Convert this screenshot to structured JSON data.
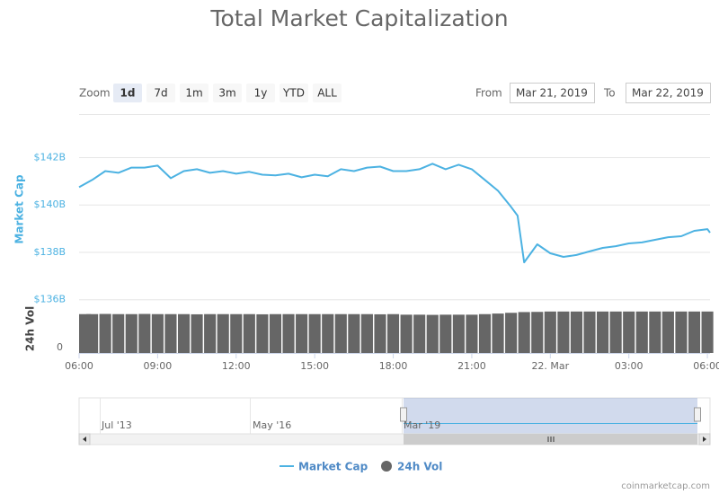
{
  "chart_data": {
    "type": "line",
    "title": "Total Market Capitalization",
    "range_selector": {
      "label": "Zoom",
      "buttons": [
        "1d",
        "7d",
        "1m",
        "3m",
        "1y",
        "YTD",
        "ALL"
      ],
      "selected": 0,
      "from_label": "From",
      "from": "Mar 21, 2019",
      "to_label": "To",
      "to": "Mar 22, 2019"
    },
    "y_axis_title": "Market Cap",
    "y2_axis_title": "24h Vol",
    "xlim": [
      6,
      30.1
    ],
    "xticks": [
      {
        "value": 6,
        "label": "06:00"
      },
      {
        "value": 9,
        "label": "09:00"
      },
      {
        "value": 12,
        "label": "12:00"
      },
      {
        "value": 15,
        "label": "15:00"
      },
      {
        "value": 18,
        "label": "18:00"
      },
      {
        "value": 21,
        "label": "21:00"
      },
      {
        "value": 24,
        "label": "22. Mar"
      },
      {
        "value": 27,
        "label": "03:00"
      },
      {
        "value": 30,
        "label": "06:00"
      }
    ],
    "ylim": [
      135.8,
      143.8
    ],
    "yticks": [
      {
        "value": 136,
        "label": "$136B"
      },
      {
        "value": 138,
        "label": "$138B"
      },
      {
        "value": 140,
        "label": "$140B"
      },
      {
        "value": 142,
        "label": "$142B"
      }
    ],
    "y2lim": [
      0,
      25
    ],
    "y2ticks": [
      0
    ],
    "grid": true,
    "series": [
      {
        "name": "Market Cap",
        "color": "#4cb2e2",
        "x": [
          6,
          6.5,
          7,
          7.5,
          8,
          8.5,
          9,
          9.5,
          10,
          10.5,
          11,
          11.5,
          12,
          12.5,
          13,
          13.5,
          14,
          14.5,
          15,
          15.5,
          16,
          16.5,
          17,
          17.5,
          18,
          18.5,
          19,
          19.5,
          20,
          20.5,
          21,
          21.5,
          22,
          22.5,
          22.75,
          23,
          23.5,
          24,
          24.5,
          25,
          25.5,
          26,
          26.5,
          27,
          27.5,
          28,
          28.5,
          29,
          29.5,
          30,
          30.1
        ],
        "values": [
          140.75,
          141.06,
          141.43,
          141.36,
          141.58,
          141.58,
          141.66,
          141.13,
          141.43,
          141.51,
          141.36,
          141.43,
          141.32,
          141.4,
          141.28,
          141.25,
          141.32,
          141.17,
          141.28,
          141.21,
          141.51,
          141.43,
          141.58,
          141.62,
          141.43,
          141.43,
          141.51,
          141.74,
          141.51,
          141.7,
          141.51,
          141.06,
          140.6,
          139.92,
          139.55,
          137.58,
          138.34,
          137.96,
          137.81,
          137.89,
          138.04,
          138.19,
          138.26,
          138.38,
          138.42,
          138.53,
          138.64,
          138.68,
          138.91,
          138.98,
          138.83
        ]
      },
      {
        "name": "24h Vol",
        "color": "#666666",
        "type": "column",
        "axis": "y2",
        "x": [
          6,
          6.5,
          7,
          7.5,
          8,
          8.5,
          9,
          9.5,
          10,
          10.5,
          11,
          11.5,
          12,
          12.5,
          13,
          13.5,
          14,
          14.5,
          15,
          15.5,
          16,
          16.5,
          17,
          17.5,
          18,
          18.5,
          19,
          19.5,
          20,
          20.5,
          21,
          21.5,
          22,
          22.5,
          23,
          23.5,
          24,
          24.5,
          25,
          25.5,
          26,
          26.5,
          27,
          27.5,
          28,
          28.5,
          29,
          29.5,
          30
        ],
        "values": [
          20.8,
          20.8,
          20.9,
          20.8,
          20.8,
          20.9,
          20.8,
          20.8,
          20.8,
          20.7,
          20.8,
          20.8,
          20.8,
          20.8,
          20.7,
          20.8,
          20.8,
          20.8,
          20.8,
          20.8,
          20.8,
          20.8,
          20.8,
          20.7,
          20.8,
          20.5,
          20.5,
          20.4,
          20.5,
          20.5,
          20.5,
          20.8,
          21.1,
          21.5,
          21.9,
          22.0,
          22.2,
          22.2,
          22.2,
          22.2,
          22.2,
          22.2,
          22.2,
          22.2,
          22.2,
          22.2,
          22.2,
          22.2,
          22.2
        ]
      }
    ],
    "navigator_labels": [
      "Jul '13",
      "May '16",
      "Mar '19"
    ],
    "credit": "coinmarketcap.com"
  }
}
